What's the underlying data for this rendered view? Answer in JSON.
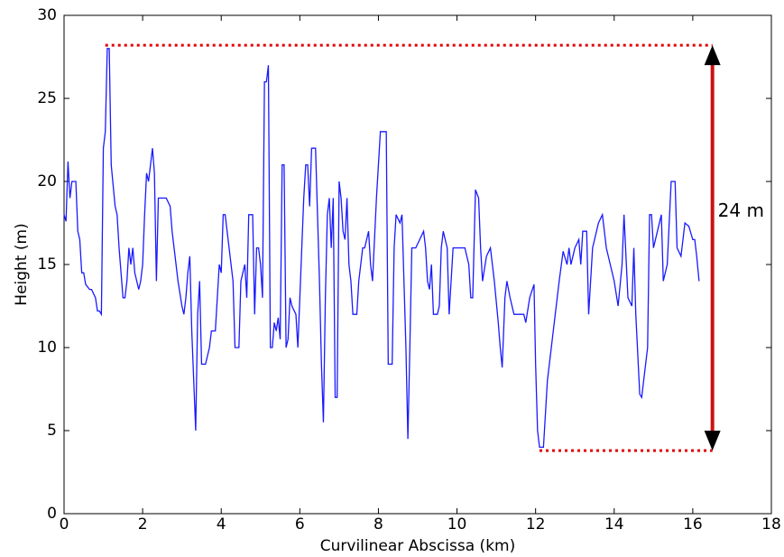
{
  "chart_data": {
    "type": "line",
    "xlabel": "Curvilinear Abscissa (km)",
    "ylabel": "Height (m)",
    "color": "#1a1aff",
    "x": [
      0,
      0.05,
      0.1,
      0.15,
      0.2,
      0.3,
      0.35,
      0.4,
      0.45,
      0.5,
      0.55,
      0.65,
      0.7,
      0.8,
      0.85,
      0.9,
      0.95,
      1.0,
      1.05,
      1.1,
      1.15,
      1.2,
      1.3,
      1.35,
      1.4,
      1.5,
      1.55,
      1.6,
      1.65,
      1.7,
      1.75,
      1.8,
      1.9,
      1.95,
      2.0,
      2.05,
      2.1,
      2.15,
      2.2,
      2.25,
      2.3,
      2.35,
      2.4,
      2.5,
      2.6,
      2.7,
      2.75,
      2.85,
      2.9,
      3.0,
      3.05,
      3.1,
      3.15,
      3.2,
      3.25,
      3.35,
      3.4,
      3.45,
      3.5,
      3.6,
      3.7,
      3.75,
      3.85,
      3.9,
      3.95,
      4.0,
      4.05,
      4.1,
      4.2,
      4.3,
      4.35,
      4.45,
      4.5,
      4.55,
      4.6,
      4.65,
      4.7,
      4.8,
      4.85,
      4.9,
      4.95,
      5.0,
      5.05,
      5.1,
      5.15,
      5.2,
      5.25,
      5.3,
      5.35,
      5.4,
      5.45,
      5.5,
      5.55,
      5.6,
      5.65,
      5.7,
      5.75,
      5.8,
      5.9,
      5.95,
      6.0,
      6.05,
      6.1,
      6.15,
      6.2,
      6.25,
      6.3,
      6.4,
      6.45,
      6.5,
      6.55,
      6.6,
      6.65,
      6.7,
      6.75,
      6.8,
      6.85,
      6.9,
      6.95,
      7.0,
      7.05,
      7.1,
      7.15,
      7.2,
      7.25,
      7.3,
      7.35,
      7.45,
      7.5,
      7.6,
      7.65,
      7.75,
      7.8,
      7.85,
      7.95,
      8.05,
      8.2,
      8.25,
      8.35,
      8.4,
      8.45,
      8.55,
      8.6,
      8.7,
      8.75,
      8.8,
      8.85,
      8.95,
      9.05,
      9.15,
      9.2,
      9.25,
      9.3,
      9.35,
      9.4,
      9.5,
      9.55,
      9.6,
      9.65,
      9.75,
      9.8,
      9.9,
      10.2,
      10.3,
      10.35,
      10.4,
      10.47,
      10.55,
      10.6,
      10.65,
      10.75,
      10.85,
      10.95,
      11.05,
      11.1,
      11.15,
      11.22,
      11.27,
      11.35,
      11.45,
      11.7,
      11.75,
      11.85,
      11.96,
      12.0,
      12.05,
      12.1,
      12.2,
      12.3,
      12.4,
      12.5,
      12.6,
      12.7,
      12.8,
      12.85,
      12.9,
      13.0,
      13.1,
      13.15,
      13.2,
      13.3,
      13.35,
      13.45,
      13.6,
      13.7,
      13.8,
      13.9,
      14.0,
      14.1,
      14.2,
      14.25,
      14.35,
      14.45,
      14.5,
      14.55,
      14.65,
      14.7,
      14.75,
      14.85,
      14.9,
      14.95,
      15.0,
      15.1,
      15.2,
      15.25,
      15.35,
      15.45,
      15.55,
      15.6,
      15.7,
      15.8,
      15.9,
      16.0,
      16.05,
      16.1,
      16.16
    ],
    "values": [
      18,
      17.6,
      21.2,
      19,
      20,
      20,
      17,
      16.5,
      14.5,
      14.5,
      13.8,
      13.5,
      13.5,
      13,
      12.2,
      12.2,
      12,
      22,
      23,
      28,
      28,
      21,
      18.5,
      18,
      16,
      13,
      13,
      14,
      16,
      15,
      16,
      14.5,
      13.5,
      14,
      15,
      18,
      20.5,
      20,
      21,
      22,
      20.5,
      14,
      19,
      19,
      19,
      18.5,
      17,
      15,
      14,
      12.5,
      12,
      13,
      14.5,
      15.5,
      11,
      5,
      12,
      14,
      9,
      9,
      10,
      11,
      11,
      13,
      15,
      14.5,
      18,
      18,
      16,
      14,
      10,
      10,
      14,
      14.5,
      15,
      13,
      18,
      18,
      12,
      16,
      16,
      15,
      13,
      26,
      26,
      27,
      10,
      10,
      11.5,
      11,
      11.8,
      10.5,
      21,
      21,
      10,
      10.5,
      13,
      12.5,
      12,
      10,
      13,
      16,
      19,
      21,
      21,
      18.5,
      22,
      22,
      18,
      14,
      9,
      5.5,
      13,
      18,
      19,
      16,
      19,
      7,
      7,
      20,
      19,
      17,
      16.5,
      19,
      15,
      14,
      12,
      12,
      14,
      16,
      16,
      17,
      15,
      14,
      19,
      23,
      23,
      9,
      9,
      16,
      18,
      17.5,
      18,
      10,
      4.5,
      10,
      16,
      16,
      16.5,
      17,
      16,
      14,
      13.5,
      15,
      12,
      12,
      12.5,
      16,
      17,
      16,
      12,
      16,
      16,
      15,
      13,
      13,
      19.5,
      19,
      16,
      14,
      15.5,
      16,
      14,
      11.5,
      10,
      8.8,
      13,
      14,
      13,
      12,
      12,
      11.5,
      13,
      13.8,
      9,
      5,
      4,
      4,
      8,
      10,
      12,
      14,
      15.8,
      15,
      16,
      15,
      16,
      16.5,
      15,
      17,
      17,
      12,
      16,
      17.5,
      18,
      16,
      15,
      14,
      12.5,
      15,
      18,
      13,
      12.5,
      16,
      12,
      7.2,
      7,
      8,
      10,
      18,
      18,
      16,
      17,
      18,
      14,
      15,
      20,
      20,
      16,
      15.5,
      17.5,
      17.3,
      16.5,
      16.5,
      15.5,
      14
    ],
    "xlim": [
      0,
      18
    ],
    "xticks": [
      0,
      2,
      4,
      6,
      8,
      10,
      12,
      14,
      16,
      18
    ],
    "ylim": [
      0,
      30
    ],
    "yticks": [
      0,
      5,
      10,
      15,
      20,
      25,
      30
    ],
    "range_annotation": {
      "label": "24 m",
      "x": 16.5,
      "y_low": 3.8,
      "y_high": 28.2,
      "x_high_start": 1.05,
      "x_low_start": 12.1,
      "line_color": "#e00000",
      "arrow_color": "#cc1111"
    }
  }
}
